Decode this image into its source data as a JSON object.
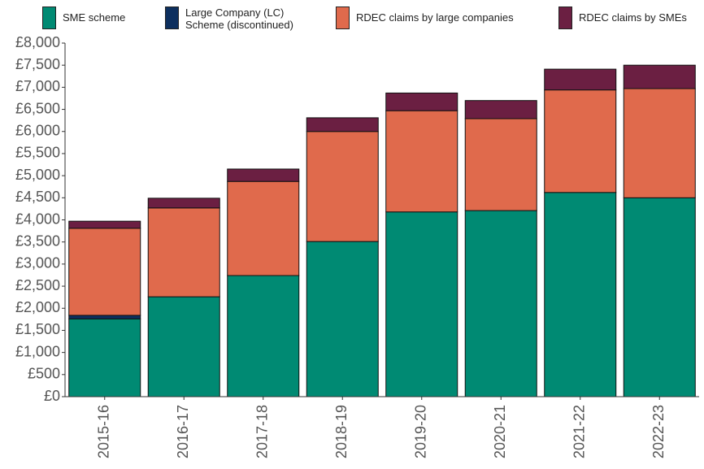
{
  "chart_data": {
    "type": "bar",
    "stacked": true,
    "categories": [
      "2015-16",
      "2016-17",
      "2017-18",
      "2018-19",
      "2019-20",
      "2020-21",
      "2021-22",
      "2022-23"
    ],
    "series": [
      {
        "name": "SME scheme",
        "color": "#008a73",
        "values": [
          1760,
          2260,
          2740,
          3510,
          4180,
          4210,
          4620,
          4500
        ]
      },
      {
        "name": "Large Company (LC) Scheme (discontinued)",
        "color": "#0d2f5e",
        "values": [
          80,
          0,
          0,
          0,
          0,
          0,
          0,
          0
        ]
      },
      {
        "name": "RDEC claims by large companies",
        "color": "#e06a4c",
        "values": [
          1970,
          2010,
          2130,
          2490,
          2290,
          2080,
          2320,
          2470
        ]
      },
      {
        "name": "RDEC claims by SMEs",
        "color": "#6b1f42",
        "values": [
          160,
          220,
          280,
          310,
          400,
          410,
          470,
          530
        ]
      }
    ],
    "ylim": [
      0,
      8000
    ],
    "yticks": [
      {
        "value": 0,
        "label": "£0"
      },
      {
        "value": 500,
        "label": "£500"
      },
      {
        "value": 1000,
        "label": "£1,000"
      },
      {
        "value": 1500,
        "label": "£1,500"
      },
      {
        "value": 2000,
        "label": "£2,000"
      },
      {
        "value": 2500,
        "label": "£2,500"
      },
      {
        "value": 3000,
        "label": "£3,000"
      },
      {
        "value": 3500,
        "label": "£3,500"
      },
      {
        "value": 4000,
        "label": "£4,000"
      },
      {
        "value": 4500,
        "label": "£4,500"
      },
      {
        "value": 5000,
        "label": "£5,000"
      },
      {
        "value": 5500,
        "label": "£5,500"
      },
      {
        "value": 6000,
        "label": "£6,000"
      },
      {
        "value": 6500,
        "label": "£6,500"
      },
      {
        "value": 7000,
        "label": "£7,000"
      },
      {
        "value": 7500,
        "label": "£7,500"
      },
      {
        "value": 8000,
        "label": "£8,000"
      }
    ],
    "grid": false
  }
}
